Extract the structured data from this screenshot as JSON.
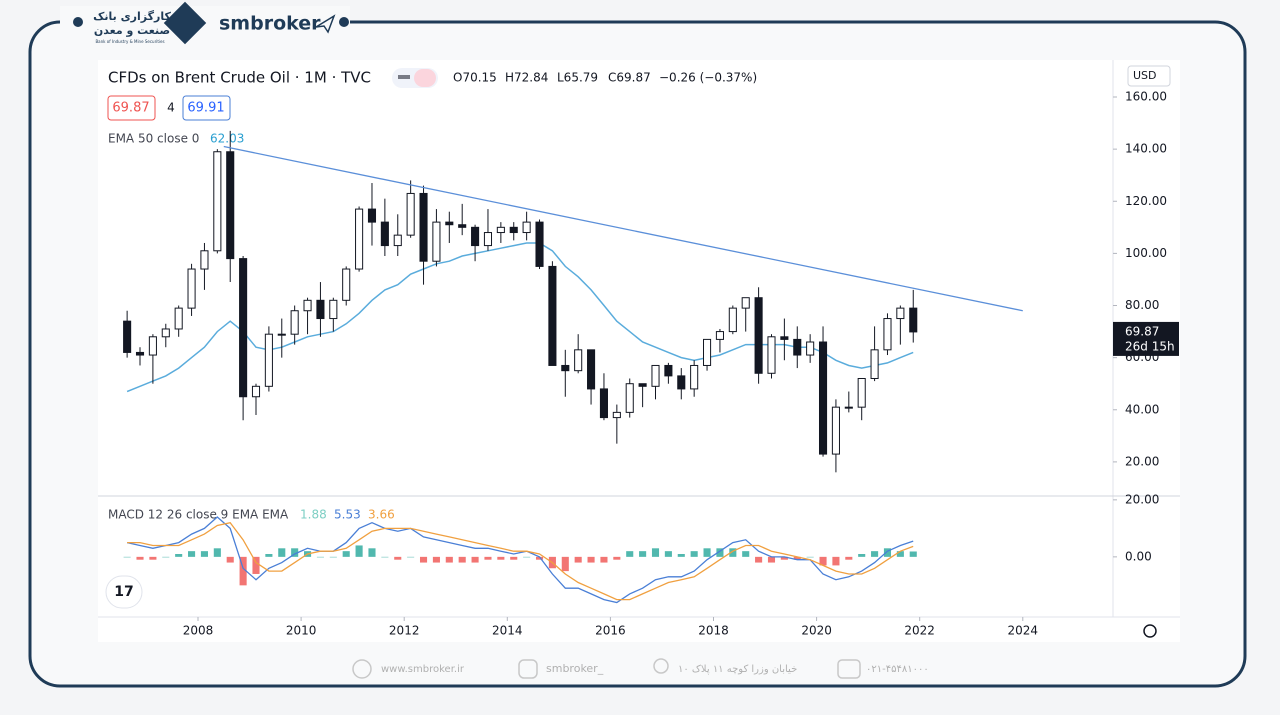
{
  "brand": {
    "logo_fa_1": "کارگزاری بانک",
    "logo_fa_2": "صنعت و معدن",
    "logo_en": "Bank of Industry & Mine Securities",
    "name": "smbroker"
  },
  "footer": {
    "website": "www.smbroker.ir",
    "instagram": "smbroker_",
    "address": "خیابان وزرا کوچه ۱۱ پلاک ۱۰",
    "phone": "۰۲۱-۴۵۴۸۱۰۰۰"
  },
  "toolbar": {
    "currency": "USD"
  },
  "chart_data": {
    "type": "candlestick",
    "title": "CFDs on Brent Crude Oil · 1M · TVC",
    "ohlc": {
      "open": "O70.15",
      "high": "H72.84",
      "low": "L65.79",
      "close": "C69.87",
      "change": "−0.26 (−0.37%)"
    },
    "bid": "69.87",
    "spread": "4",
    "ask": "69.91",
    "last_price": "69.87",
    "countdown": "26d 15h",
    "up_color": "#ffffff",
    "down_color": "#131722",
    "x": [
      2006.625,
      2006.875,
      2007.125,
      2007.375,
      2007.625,
      2007.875,
      2008.125,
      2008.375,
      2008.625,
      2008.875,
      2009.125,
      2009.375,
      2009.625,
      2009.875,
      2010.125,
      2010.375,
      2010.625,
      2010.875,
      2011.125,
      2011.375,
      2011.625,
      2011.875,
      2012.125,
      2012.375,
      2012.625,
      2012.875,
      2013.125,
      2013.375,
      2013.625,
      2013.875,
      2014.125,
      2014.375,
      2014.625,
      2014.875,
      2015.125,
      2015.375,
      2015.625,
      2015.875,
      2016.125,
      2016.375,
      2016.625,
      2016.875,
      2017.125,
      2017.375,
      2017.625,
      2017.875,
      2018.125,
      2018.375,
      2018.625,
      2018.875,
      2019.125,
      2019.375,
      2019.625,
      2019.875,
      2020.125,
      2020.375,
      2020.625,
      2020.875,
      2021.125,
      2021.375,
      2021.625,
      2021.875
    ],
    "open": [
      74,
      62,
      61,
      68,
      71,
      79,
      94,
      101,
      139,
      98,
      45,
      49,
      69,
      69,
      78,
      82,
      75,
      82,
      94,
      117,
      112,
      103,
      107,
      123,
      97,
      112,
      111,
      110,
      103,
      108,
      110,
      108,
      112,
      95,
      57,
      55,
      63,
      48,
      37,
      39,
      50,
      49,
      57,
      53,
      48,
      57,
      67,
      70,
      79,
      83,
      54,
      68,
      67,
      61,
      66,
      23,
      41,
      41,
      52,
      63,
      75,
      79
    ],
    "high": [
      78,
      64,
      69,
      73,
      80,
      96,
      104,
      140,
      147,
      99,
      50,
      72,
      75,
      80,
      83,
      89,
      83,
      95,
      118,
      127,
      121,
      115,
      128,
      126,
      117,
      116,
      119,
      111,
      117,
      112,
      112,
      116,
      113,
      97,
      63,
      69,
      63,
      54,
      42,
      52,
      50,
      57,
      58,
      56,
      59,
      67,
      71,
      80,
      83,
      87,
      69,
      75,
      72,
      69,
      72,
      44,
      47,
      52,
      72,
      77,
      80,
      86
    ],
    "low": [
      60,
      57,
      50,
      64,
      68,
      76,
      86,
      100,
      89,
      36,
      38,
      47,
      60,
      65,
      69,
      68,
      70,
      80,
      93,
      103,
      99,
      99,
      106,
      88,
      95,
      104,
      107,
      97,
      101,
      104,
      105,
      105,
      94,
      58,
      45,
      54,
      42,
      36,
      27,
      37,
      41,
      44,
      50,
      44,
      45,
      55,
      62,
      69,
      70,
      50,
      52,
      59,
      56,
      58,
      22,
      16,
      39,
      36,
      51,
      61,
      65,
      65.79
    ],
    "close": [
      62,
      61,
      68,
      71,
      79,
      94,
      101,
      139,
      98,
      45,
      49,
      69,
      69,
      78,
      82,
      75,
      82,
      94,
      117,
      112,
      103,
      107,
      123,
      97,
      112,
      111,
      110,
      103,
      108,
      110,
      108,
      112,
      95,
      57,
      55,
      63,
      48,
      37,
      39,
      50,
      49,
      57,
      53,
      48,
      57,
      67,
      70,
      79,
      83,
      54,
      68,
      67,
      61,
      66,
      23,
      41,
      41,
      52,
      63,
      75,
      79,
      69.87
    ],
    "ema": {
      "name": "EMA 50 close 0",
      "label": "62.03",
      "color": "#5aacdc",
      "values": [
        47,
        49,
        51,
        53,
        56,
        60,
        64,
        70,
        74,
        70,
        64,
        63,
        64,
        66,
        68,
        69,
        70,
        73,
        77,
        82,
        86,
        88,
        92,
        94,
        96,
        97,
        99,
        100,
        101,
        102,
        103,
        104,
        104,
        101,
        95,
        91,
        86,
        80,
        74,
        70,
        66,
        64,
        62,
        60,
        59,
        60,
        61,
        63,
        65,
        65,
        65,
        65,
        64,
        64,
        62,
        59,
        57,
        56,
        57,
        58,
        60,
        62.03
      ]
    },
    "trendline": {
      "x": [
        2008.5,
        2024
      ],
      "y": [
        141,
        78
      ],
      "color": "#5b8fd9"
    },
    "xlim": [
      2006.06,
      2025.75
    ],
    "xticks": [
      2008,
      2010,
      2012,
      2014,
      2016,
      2018,
      2020,
      2022,
      2024
    ],
    "ylim": [
      7.3,
      174.2
    ],
    "yticks": [
      {
        "value": 20,
        "label": "20.00"
      },
      {
        "value": 40,
        "label": "40.00"
      },
      {
        "value": 60,
        "label": "60.00"
      },
      {
        "value": 80,
        "label": "80.00"
      },
      {
        "value": 100,
        "label": "100.00"
      },
      {
        "value": 120,
        "label": "120.00"
      },
      {
        "value": 140,
        "label": "140.00"
      },
      {
        "value": 160,
        "label": "160.00"
      }
    ],
    "macd": {
      "name": "MACD 12 26 close 9 EMA EMA",
      "ylim": [
        -20.4,
        21
      ],
      "yticks": [
        {
          "value": 0,
          "label": "0.00"
        },
        {
          "value": 20,
          "label": "20.00"
        }
      ],
      "histogram": {
        "label": "1.88",
        "pos_color": "#26a69a",
        "neg_color": "#ef5350",
        "values": [
          0,
          -1,
          -1,
          0,
          1,
          2,
          2,
          3,
          -2,
          -10,
          -6,
          1,
          3,
          3,
          2,
          0,
          0,
          2,
          4,
          3,
          0,
          -1,
          0,
          -2,
          -2,
          -2,
          -2,
          -2,
          -1,
          -1,
          -1,
          0,
          -1,
          -4,
          -5,
          -2,
          -2,
          -2,
          -1,
          2,
          2,
          3,
          2,
          1,
          2,
          3,
          3,
          3,
          2,
          -2,
          -2,
          -1,
          -1,
          0,
          -3,
          -3,
          -1,
          1,
          2,
          3,
          2,
          1.88
        ]
      },
      "line": {
        "label": "5.53",
        "color": "#4a7fd6",
        "values": [
          5,
          4,
          3,
          4,
          5,
          8,
          10,
          14,
          10,
          -4,
          -8,
          -4,
          -2,
          1,
          3,
          2,
          2,
          5,
          10,
          12,
          10,
          9,
          10,
          7,
          6,
          5,
          4,
          3,
          3,
          2,
          1,
          2,
          0,
          -6,
          -11,
          -11,
          -13,
          -15,
          -16,
          -13,
          -11,
          -8,
          -7,
          -7,
          -5,
          -1,
          2,
          5,
          6,
          2,
          0,
          0,
          -1,
          -1,
          -6,
          -8,
          -7,
          -5,
          -2,
          2,
          4,
          5.53
        ]
      },
      "signal": {
        "label": "3.66",
        "color": "#f0a040",
        "values": [
          5,
          5,
          4,
          4,
          4,
          6,
          8,
          11,
          12,
          6,
          -2,
          -5,
          -5,
          -2,
          1,
          2,
          2,
          3,
          6,
          9,
          10,
          10,
          10,
          9,
          8,
          7,
          6,
          5,
          4,
          3,
          2,
          2,
          1,
          -2,
          -6,
          -9,
          -11,
          -13,
          -15,
          -15,
          -13,
          -11,
          -9,
          -8,
          -7,
          -4,
          -1,
          2,
          4,
          4,
          2,
          1,
          0,
          -1,
          -3,
          -5,
          -6,
          -6,
          -4,
          -1,
          2,
          3.66
        ]
      }
    }
  }
}
